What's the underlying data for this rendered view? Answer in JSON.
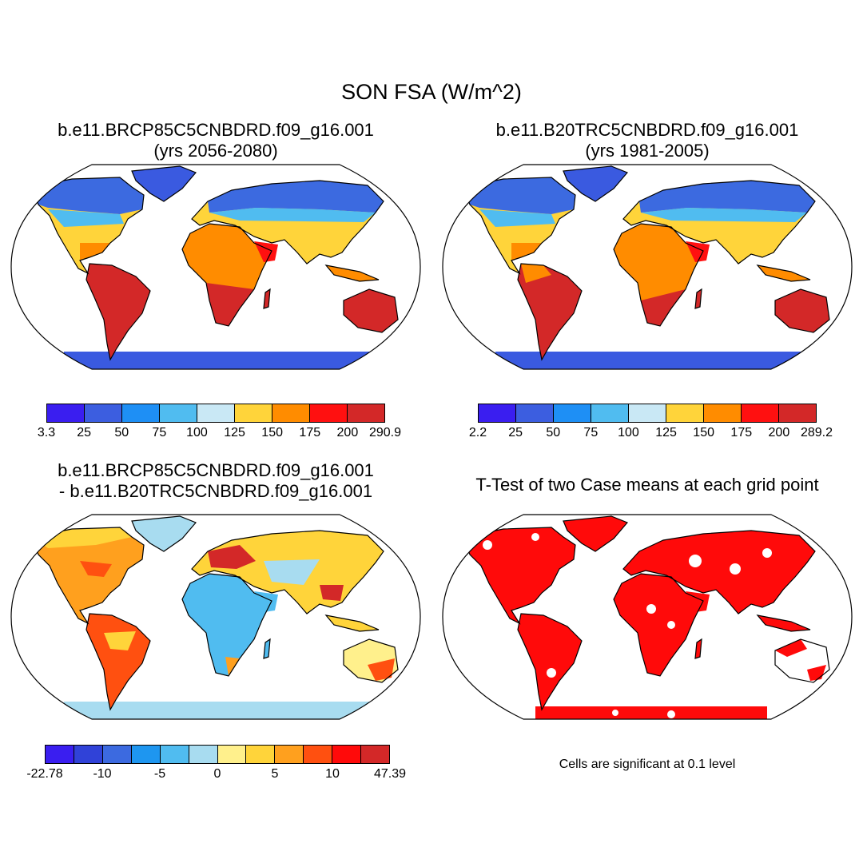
{
  "main_title": "SON FSA (W/m^2)",
  "panels": {
    "top_left": {
      "title_line1": "b.e11.BRCP85C5CNBDRD.f09_g16.001",
      "title_line2": "(yrs 2056-2080)",
      "colorbar_colors": [
        "#3a1ef0",
        "#3c5ee0",
        "#1e8ff5",
        "#50bcf0",
        "#c9e8f5",
        "#ffd43a",
        "#ff8c00",
        "#ff1010",
        "#d32828"
      ],
      "colorbar_labels": [
        "3.3",
        "25",
        "50",
        "75",
        "100",
        "125",
        "150",
        "175",
        "200",
        "290.9"
      ]
    },
    "top_right": {
      "title_line1": "b.e11.B20TRC5CNBDRD.f09_g16.001",
      "title_line2": "(yrs 1981-2005)",
      "colorbar_colors": [
        "#3a1ef0",
        "#3c5ee0",
        "#1e8ff5",
        "#50bcf0",
        "#c9e8f5",
        "#ffd43a",
        "#ff8c00",
        "#ff1010",
        "#d32828"
      ],
      "colorbar_labels": [
        "2.2",
        "25",
        "50",
        "75",
        "100",
        "125",
        "150",
        "175",
        "200",
        "289.2"
      ]
    },
    "bottom_left": {
      "title_line1": "b.e11.BRCP85C5CNBDRD.f09_g16.001",
      "title_line2": "- b.e11.B20TRC5CNBDRD.f09_g16.001",
      "colorbar_colors": [
        "#3a1ef0",
        "#3042d8",
        "#3c6ae0",
        "#1e96f0",
        "#50bcf0",
        "#a8dcf0",
        "#fff08c",
        "#ffd43a",
        "#ffa01e",
        "#ff5010",
        "#ff0a0a",
        "#d32828"
      ],
      "colorbar_labels": [
        "-22.78",
        "-10",
        "-5",
        "0",
        "5",
        "10",
        "47.39"
      ]
    },
    "bottom_right": {
      "title_line1": "T-Test of two Case means at each grid point",
      "note": "Cells are significant at 0.1 level"
    }
  }
}
